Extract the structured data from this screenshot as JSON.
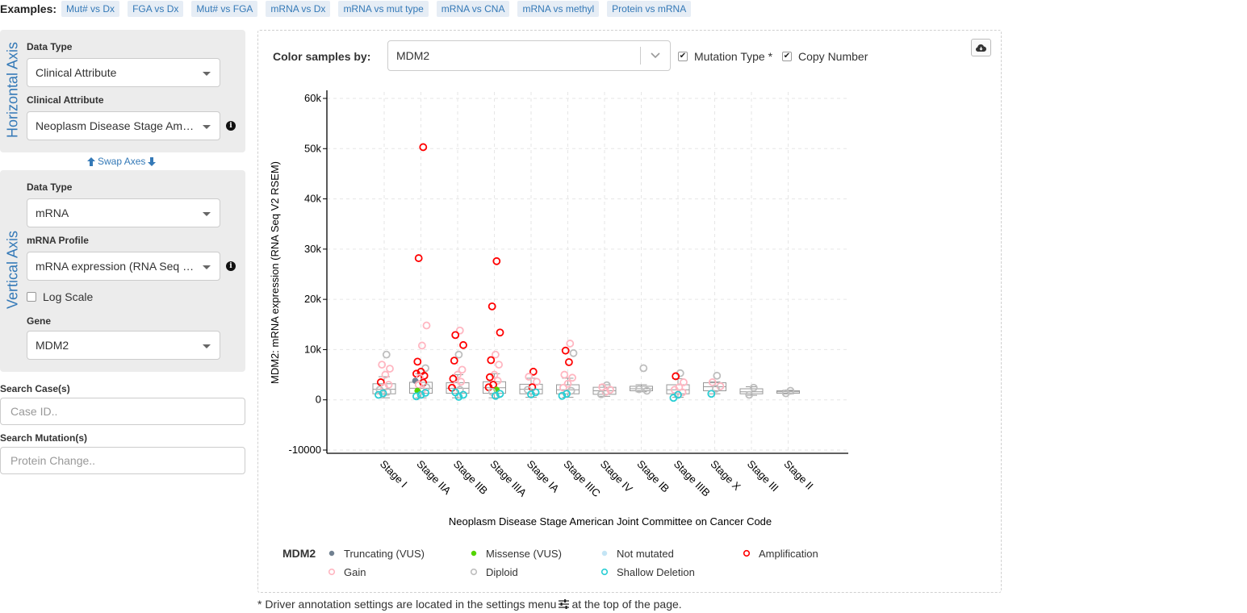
{
  "examples": {
    "label": "Examples:",
    "items": [
      "Mut# vs Dx",
      "FGA vs Dx",
      "Mut# vs FGA",
      "mRNA vs Dx",
      "mRNA vs mut type",
      "mRNA vs CNA",
      "mRNA vs methyl",
      "Protein vs mRNA"
    ]
  },
  "horizontal": {
    "axis_title": "Horizontal Axis",
    "data_type_label": "Data Type",
    "data_type_value": "Clinical Attribute",
    "attr_label": "Clinical Attribute",
    "attr_value": "Neoplasm Disease Stage American Joint Committee on Cancer Code"
  },
  "swap": {
    "label": "Swap Axes"
  },
  "vertical": {
    "axis_title": "Vertical Axis",
    "data_type_label": "Data Type",
    "data_type_value": "mRNA",
    "profile_label": "mRNA Profile",
    "profile_value": "mRNA expression (RNA Seq V2 RSEM)",
    "log_scale_label": "Log Scale",
    "log_scale_checked": false,
    "gene_label": "Gene",
    "gene_value": "MDM2"
  },
  "search": {
    "cases_label": "Search Case(s)",
    "cases_placeholder": "Case ID..",
    "mutations_label": "Search Mutation(s)",
    "mutations_placeholder": "Protein Change.."
  },
  "plot_controls": {
    "color_by_label": "Color samples by:",
    "color_by_value": "MDM2",
    "mutation_type_label": "Mutation Type *",
    "mutation_type_checked": true,
    "copy_number_label": "Copy Number",
    "copy_number_checked": true
  },
  "icons": {
    "download": "cloud-download-icon",
    "info": "info-icon",
    "sliders": "sliders-icon"
  },
  "footnote": {
    "text_before": "* Driver annotation settings are located in the settings menu",
    "text_after": "at the top of the page."
  },
  "chart_data": {
    "type": "scatter",
    "xlabel": "Neoplasm Disease Stage American Joint Committee on Cancer Code",
    "ylabel": "MDM2: mRNA expression (RNA Seq V2 RSEM)",
    "ylim": [
      -10000,
      60000
    ],
    "yticks": [
      60000,
      50000,
      40000,
      30000,
      20000,
      10000,
      0,
      -10000
    ],
    "ytick_labels": [
      "60k",
      "50k",
      "40k",
      "30k",
      "20k",
      "10k",
      "0",
      "-10000"
    ],
    "grid": true,
    "categories": [
      "Stage I",
      "Stage IIA",
      "Stage IIB",
      "Stage IIIA",
      "Stage IA",
      "Stage IIIC",
      "Stage IV",
      "Stage IB",
      "Stage IIIB",
      "Stage X",
      "Stage III",
      "Stage II"
    ],
    "box_stats": [
      {
        "q1": 1200,
        "median": 2100,
        "q3": 3200,
        "whisker_low": 400,
        "whisker_high": 4600
      },
      {
        "q1": 1300,
        "median": 2300,
        "q3": 3500,
        "whisker_low": 400,
        "whisker_high": 5200
      },
      {
        "q1": 1300,
        "median": 2300,
        "q3": 3400,
        "whisker_low": 400,
        "whisker_high": 5000
      },
      {
        "q1": 1300,
        "median": 2400,
        "q3": 3600,
        "whisker_low": 400,
        "whisker_high": 5200
      },
      {
        "q1": 1200,
        "median": 2100,
        "q3": 3100,
        "whisker_low": 500,
        "whisker_high": 4300
      },
      {
        "q1": 1200,
        "median": 2000,
        "q3": 3000,
        "whisker_low": 500,
        "whisker_high": 4300
      },
      {
        "q1": 1100,
        "median": 1800,
        "q3": 2500,
        "whisker_low": 700,
        "whisker_high": 3000
      },
      {
        "q1": 1800,
        "median": 2200,
        "q3": 2700,
        "whisker_low": 1600,
        "whisker_high": 3000
      },
      {
        "q1": 1200,
        "median": 2000,
        "q3": 3000,
        "whisker_low": 500,
        "whisker_high": 4200
      },
      {
        "q1": 1800,
        "median": 2600,
        "q3": 3400,
        "whisker_low": 1200,
        "whisker_high": 3600
      },
      {
        "q1": 1200,
        "median": 1600,
        "q3": 2200,
        "whisker_low": 900,
        "whisker_high": 2600
      },
      {
        "q1": 1300,
        "median": 1600,
        "q3": 1800,
        "whisker_low": 1200,
        "whisker_high": 1900
      }
    ],
    "points": [
      {
        "x": "Stage I",
        "y": 9000,
        "cat": "diploid"
      },
      {
        "x": "Stage I",
        "y": 7000,
        "cat": "gain"
      },
      {
        "x": "Stage I",
        "y": 6200,
        "cat": "gain"
      },
      {
        "x": "Stage I",
        "y": 5000,
        "cat": "gain"
      },
      {
        "x": "Stage I",
        "y": 3500,
        "cat": "amp"
      },
      {
        "x": "Stage I",
        "y": 3000,
        "cat": "gain"
      },
      {
        "x": "Stage I",
        "y": 2500,
        "cat": "gain"
      },
      {
        "x": "Stage I",
        "y": 2000,
        "cat": "diploid"
      },
      {
        "x": "Stage I",
        "y": 1600,
        "cat": "diploid"
      },
      {
        "x": "Stage I",
        "y": 1300,
        "cat": "shallow"
      },
      {
        "x": "Stage I",
        "y": 1000,
        "cat": "shallow"
      },
      {
        "x": "Stage IIA",
        "y": 50300,
        "cat": "amp"
      },
      {
        "x": "Stage IIA",
        "y": 28200,
        "cat": "amp"
      },
      {
        "x": "Stage IIA",
        "y": 14800,
        "cat": "gain"
      },
      {
        "x": "Stage IIA",
        "y": 10800,
        "cat": "gain"
      },
      {
        "x": "Stage IIA",
        "y": 7600,
        "cat": "amp"
      },
      {
        "x": "Stage IIA",
        "y": 6300,
        "cat": "diploid"
      },
      {
        "x": "Stage IIA",
        "y": 5600,
        "cat": "amp"
      },
      {
        "x": "Stage IIA",
        "y": 5200,
        "cat": "amp"
      },
      {
        "x": "Stage IIA",
        "y": 4800,
        "cat": "amp"
      },
      {
        "x": "Stage IIA",
        "y": 4400,
        "cat": "gain"
      },
      {
        "x": "Stage IIA",
        "y": 3800,
        "cat": "trunc"
      },
      {
        "x": "Stage IIA",
        "y": 3400,
        "cat": "amp"
      },
      {
        "x": "Stage IIA",
        "y": 3000,
        "cat": "gain"
      },
      {
        "x": "Stage IIA",
        "y": 2500,
        "cat": "diploid"
      },
      {
        "x": "Stage IIA",
        "y": 2000,
        "cat": "gain"
      },
      {
        "x": "Stage IIA",
        "y": 1800,
        "cat": "missense"
      },
      {
        "x": "Stage IIA",
        "y": 1400,
        "cat": "shallow"
      },
      {
        "x": "Stage IIA",
        "y": 1000,
        "cat": "shallow"
      },
      {
        "x": "Stage IIA",
        "y": 700,
        "cat": "shallow"
      },
      {
        "x": "Stage IIB",
        "y": 13800,
        "cat": "gain"
      },
      {
        "x": "Stage IIB",
        "y": 12900,
        "cat": "amp"
      },
      {
        "x": "Stage IIB",
        "y": 10900,
        "cat": "amp"
      },
      {
        "x": "Stage IIB",
        "y": 9000,
        "cat": "diploid"
      },
      {
        "x": "Stage IIB",
        "y": 7800,
        "cat": "amp"
      },
      {
        "x": "Stage IIB",
        "y": 6000,
        "cat": "gain"
      },
      {
        "x": "Stage IIB",
        "y": 5000,
        "cat": "gain"
      },
      {
        "x": "Stage IIB",
        "y": 4200,
        "cat": "amp"
      },
      {
        "x": "Stage IIB",
        "y": 3600,
        "cat": "gain"
      },
      {
        "x": "Stage IIB",
        "y": 3000,
        "cat": "gain"
      },
      {
        "x": "Stage IIB",
        "y": 2400,
        "cat": "amp"
      },
      {
        "x": "Stage IIB",
        "y": 2000,
        "cat": "diploid"
      },
      {
        "x": "Stage IIB",
        "y": 1500,
        "cat": "shallow"
      },
      {
        "x": "Stage IIB",
        "y": 1000,
        "cat": "shallow"
      },
      {
        "x": "Stage IIB",
        "y": 600,
        "cat": "shallow"
      },
      {
        "x": "Stage IIIA",
        "y": 27600,
        "cat": "amp"
      },
      {
        "x": "Stage IIIA",
        "y": 18600,
        "cat": "amp"
      },
      {
        "x": "Stage IIIA",
        "y": 13400,
        "cat": "amp"
      },
      {
        "x": "Stage IIIA",
        "y": 9000,
        "cat": "gain"
      },
      {
        "x": "Stage IIIA",
        "y": 7900,
        "cat": "amp"
      },
      {
        "x": "Stage IIIA",
        "y": 7000,
        "cat": "gain"
      },
      {
        "x": "Stage IIIA",
        "y": 5000,
        "cat": "gain"
      },
      {
        "x": "Stage IIIA",
        "y": 4500,
        "cat": "amp"
      },
      {
        "x": "Stage IIIA",
        "y": 3800,
        "cat": "gain"
      },
      {
        "x": "Stage IIIA",
        "y": 3000,
        "cat": "amp"
      },
      {
        "x": "Stage IIIA",
        "y": 2500,
        "cat": "amp"
      },
      {
        "x": "Stage IIIA",
        "y": 2000,
        "cat": "missense"
      },
      {
        "x": "Stage IIIA",
        "y": 1600,
        "cat": "diploid"
      },
      {
        "x": "Stage IIIA",
        "y": 1200,
        "cat": "shallow"
      },
      {
        "x": "Stage IIIA",
        "y": 800,
        "cat": "shallow"
      },
      {
        "x": "Stage IA",
        "y": 5600,
        "cat": "amp"
      },
      {
        "x": "Stage IA",
        "y": 4600,
        "cat": "gain"
      },
      {
        "x": "Stage IA",
        "y": 3600,
        "cat": "gain"
      },
      {
        "x": "Stage IA",
        "y": 2500,
        "cat": "amp"
      },
      {
        "x": "Stage IA",
        "y": 2000,
        "cat": "diploid"
      },
      {
        "x": "Stage IA",
        "y": 1500,
        "cat": "shallow"
      },
      {
        "x": "Stage IA",
        "y": 1100,
        "cat": "shallow"
      },
      {
        "x": "Stage IIIC",
        "y": 11200,
        "cat": "gain"
      },
      {
        "x": "Stage IIIC",
        "y": 9800,
        "cat": "amp"
      },
      {
        "x": "Stage IIIC",
        "y": 9300,
        "cat": "diploid"
      },
      {
        "x": "Stage IIIC",
        "y": 7500,
        "cat": "amp"
      },
      {
        "x": "Stage IIIC",
        "y": 5000,
        "cat": "gain"
      },
      {
        "x": "Stage IIIC",
        "y": 4400,
        "cat": "gain"
      },
      {
        "x": "Stage IIIC",
        "y": 3200,
        "cat": "gain"
      },
      {
        "x": "Stage IIIC",
        "y": 2400,
        "cat": "gain"
      },
      {
        "x": "Stage IIIC",
        "y": 1800,
        "cat": "diploid"
      },
      {
        "x": "Stage IIIC",
        "y": 1200,
        "cat": "shallow"
      },
      {
        "x": "Stage IIIC",
        "y": 800,
        "cat": "shallow"
      },
      {
        "x": "Stage IV",
        "y": 2900,
        "cat": "diploid"
      },
      {
        "x": "Stage IV",
        "y": 2500,
        "cat": "gain"
      },
      {
        "x": "Stage IV",
        "y": 2000,
        "cat": "gain"
      },
      {
        "x": "Stage IV",
        "y": 1600,
        "cat": "gain"
      },
      {
        "x": "Stage IV",
        "y": 1100,
        "cat": "diploid"
      },
      {
        "x": "Stage IB",
        "y": 6300,
        "cat": "diploid"
      },
      {
        "x": "Stage IB",
        "y": 2100,
        "cat": "diploid"
      },
      {
        "x": "Stage IB",
        "y": 1800,
        "cat": "diploid"
      },
      {
        "x": "Stage IIIB",
        "y": 5300,
        "cat": "diploid"
      },
      {
        "x": "Stage IIIB",
        "y": 4700,
        "cat": "amp"
      },
      {
        "x": "Stage IIIB",
        "y": 3500,
        "cat": "gain"
      },
      {
        "x": "Stage IIIB",
        "y": 2500,
        "cat": "gain"
      },
      {
        "x": "Stage IIIB",
        "y": 2000,
        "cat": "gain"
      },
      {
        "x": "Stage IIIB",
        "y": 1500,
        "cat": "gain"
      },
      {
        "x": "Stage IIIB",
        "y": 1000,
        "cat": "shallow"
      },
      {
        "x": "Stage IIIB",
        "y": 400,
        "cat": "shallow"
      },
      {
        "x": "Stage X",
        "y": 4800,
        "cat": "diploid"
      },
      {
        "x": "Stage X",
        "y": 3500,
        "cat": "gain"
      },
      {
        "x": "Stage X",
        "y": 2700,
        "cat": "gain"
      },
      {
        "x": "Stage X",
        "y": 2200,
        "cat": "diploid"
      },
      {
        "x": "Stage X",
        "y": 1200,
        "cat": "shallow"
      },
      {
        "x": "Stage III",
        "y": 2400,
        "cat": "diploid"
      },
      {
        "x": "Stage III",
        "y": 1000,
        "cat": "diploid"
      },
      {
        "x": "Stage II",
        "y": 1800,
        "cat": "diploid"
      },
      {
        "x": "Stage II",
        "y": 1300,
        "cat": "diploid"
      }
    ],
    "legend": {
      "title": "MDM2",
      "entries": [
        {
          "key": "trunc",
          "label": "Truncating (VUS)",
          "fill": "#708090",
          "stroke": "#708090"
        },
        {
          "key": "missense",
          "label": "Missense (VUS)",
          "fill": "#53d400",
          "stroke": "#53d400"
        },
        {
          "key": "nomut",
          "label": "Not mutated",
          "fill": "#c4e5f5",
          "stroke": "#c4e5f5"
        },
        {
          "key": "amp",
          "label": "Amplification",
          "fill": "none",
          "stroke": "#ff0000"
        },
        {
          "key": "gain",
          "label": "Gain",
          "fill": "none",
          "stroke": "#ffb6c1"
        },
        {
          "key": "diploid",
          "label": "Diploid",
          "fill": "none",
          "stroke": "#bebebe"
        },
        {
          "key": "shallow",
          "label": "Shallow Deletion",
          "fill": "none",
          "stroke": "#2aced4"
        }
      ]
    }
  }
}
